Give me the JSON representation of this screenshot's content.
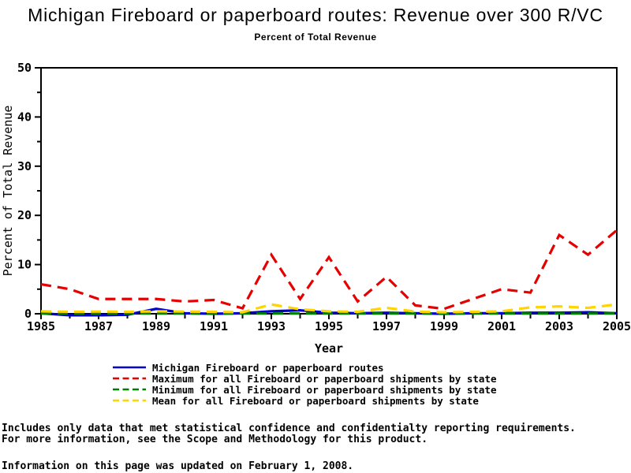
{
  "page": {
    "title": "Michigan Fireboard or paperboard routes: Revenue over 300 R/VC",
    "subtitle": "Percent of Total Revenue"
  },
  "chart_data": {
    "type": "line",
    "title": "Michigan Fireboard or paperboard routes: Revenue over 300 R/VC",
    "subtitle": "Percent of Total Revenue",
    "xlabel": "Year",
    "ylabel": "Percent of Total Revenue",
    "xlim": [
      1985,
      2005
    ],
    "ylim": [
      0,
      50
    ],
    "xticks_labeled": [
      1985,
      1987,
      1989,
      1991,
      1993,
      1995,
      1997,
      1999,
      2001,
      2003,
      2005
    ],
    "x_minor_tick_step": 1,
    "yticks_labeled": [
      0,
      10,
      20,
      30,
      40,
      50
    ],
    "y_minor_tick_step": 5,
    "grid": "off",
    "legend_position": "bottom",
    "x": [
      1985,
      1986,
      1987,
      1988,
      1989,
      1990,
      1991,
      1992,
      1993,
      1994,
      1995,
      1996,
      1997,
      1998,
      1999,
      2000,
      2001,
      2002,
      2003,
      2004,
      2005
    ],
    "series": [
      {
        "name": "Michigan Fireboard or paperboard routes",
        "color": "#0000CD",
        "style": "solid",
        "values": [
          0.1,
          -0.3,
          -0.3,
          -0.2,
          1.0,
          0.1,
          0.0,
          0.1,
          0.5,
          0.7,
          0.2,
          0.1,
          0.2,
          0.1,
          0.0,
          0.1,
          0.1,
          0.2,
          0.2,
          0.3,
          0.1
        ]
      },
      {
        "name": "Maximum for all Fireboard or paperboard shipments by state",
        "color": "#E60000",
        "style": "dashed",
        "values": [
          6.0,
          5.0,
          3.0,
          3.0,
          3.0,
          2.5,
          2.8,
          1.1,
          12.0,
          3.0,
          11.5,
          2.5,
          7.5,
          1.7,
          1.0,
          3.0,
          5.0,
          4.3,
          16.0,
          12.0,
          17.0
        ]
      },
      {
        "name": "Minimum for all Fireboard or paperboard shipments by state",
        "color": "#008000",
        "style": "dashed",
        "values": [
          0.05,
          0.05,
          0.05,
          0.05,
          0.05,
          0.05,
          0.05,
          0.05,
          0.05,
          0.05,
          0.05,
          0.05,
          0.05,
          0.05,
          0.05,
          0.05,
          0.05,
          0.05,
          0.05,
          0.05,
          0.05
        ]
      },
      {
        "name": "Mean for all Fireboard or paperboard shipments by state",
        "color": "#FFD400",
        "style": "dashed",
        "values": [
          0.5,
          0.4,
          0.45,
          0.4,
          0.5,
          0.45,
          0.4,
          0.3,
          1.9,
          0.9,
          0.5,
          0.4,
          1.2,
          0.45,
          0.3,
          0.4,
          0.5,
          1.3,
          1.5,
          1.2,
          1.9
        ]
      }
    ]
  },
  "footnotes": {
    "line1": "Includes only data that met statistical confidence and confidentialty reporting requirements.",
    "line2": "For more information, see the Scope and Methodology for this product.",
    "updated": "Information on this page was updated on February 1, 2008."
  }
}
